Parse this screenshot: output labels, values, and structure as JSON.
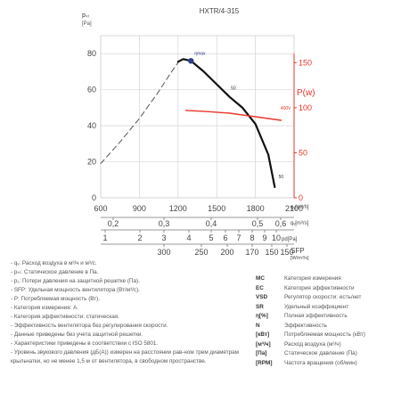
{
  "chart_data": {
    "type": "line",
    "title": "HXTR/4-315",
    "y_left": {
      "label": "pₛₜ [Pa]",
      "ticks": [
        "0",
        "20",
        "40",
        "60",
        "80"
      ],
      "range": [
        0,
        90
      ]
    },
    "y_right": {
      "label": "P(w)",
      "ticks": [
        "0",
        "50",
        "100",
        "150"
      ],
      "range": [
        0,
        180
      ],
      "color": "#e8362a"
    },
    "x_axis": {
      "label": "qᵥ[m³/h]",
      "ticks": [
        "600",
        "900",
        "1200",
        "1500",
        "1800",
        "2100"
      ],
      "range": [
        600,
        2100
      ]
    },
    "scale_m3s": {
      "label": "qᵥ[m³/s]",
      "ticks": [
        "0,2",
        "0,3",
        "0,4",
        "0,5",
        "0,6"
      ]
    },
    "scale_pd": {
      "label": "pd[Pa]",
      "ticks": [
        "1",
        "2",
        "3",
        "4",
        "5",
        "6",
        "7",
        "8",
        "9",
        "10"
      ]
    },
    "scale_sfp": {
      "label": "SFP",
      "unit": "[W/m³/s]",
      "ticks": [
        "300",
        "250",
        "200",
        "170",
        "150",
        "150"
      ]
    },
    "annotations": {
      "max": "ηmax",
      "pressure_curve": "50",
      "power_curve": "400V",
      "end": "50"
    },
    "series": [
      {
        "id": "pressure_dashed",
        "style": "dashed",
        "color": "#555555",
        "axis": "left",
        "x": [
          600,
          750,
          900,
          1050,
          1150,
          1200
        ],
        "y": [
          19,
          31,
          44,
          59,
          70,
          75
        ]
      },
      {
        "id": "pressure",
        "style": "solid",
        "color": "#111111",
        "axis": "left",
        "x": [
          1200,
          1240,
          1300,
          1400,
          1500,
          1600,
          1700,
          1800,
          1900,
          1950
        ],
        "y": [
          75.5,
          77,
          76,
          70,
          63,
          56,
          50,
          41,
          24,
          6
        ]
      },
      {
        "id": "power",
        "style": "solid",
        "color": "#e8362a",
        "axis": "right",
        "x": [
          1260,
          1400,
          1600,
          1800,
          2000
        ],
        "y": [
          97,
          96,
          94,
          90,
          86
        ]
      }
    ],
    "max_point": {
      "x": 1300,
      "y": 76
    }
  },
  "notes": [
    "- qᵥ: Расход воздуха в м³/ч и м³/с.",
    "- pₛₜ: Статическое давление в Па.",
    "- p₁: Потери давления на защитной решетке (Па).",
    "- SFP: Удельная мощность вентилятора (Вт/м³/с).",
    "- P: Потребляемая мощность (Вт).",
    "- Категория измерения: А.",
    "- Категория эффективности: статическая.",
    "- Эффективность вентилятора без регулирования скорости.",
    "- Данные приведены без учета защитной решетки.",
    "- Характеристики приведены в соответствии с ISO 5801.",
    "- Уровень звукового давления (дБ(А)) измерен на расстоянии рав-ном трем диаметрам крыльчатки, но не менее 1,5 м от вентилятора, в свободном пространстве."
  ],
  "legend": [
    {
      "abbr": "MC",
      "desc": "Категория измерения"
    },
    {
      "abbr": "EC",
      "desc": "Категория эффективности"
    },
    {
      "abbr": "VSD",
      "desc": "Регулятор скорости: есть/нет"
    },
    {
      "abbr": "SR",
      "desc": "Удельный коэффициент"
    },
    {
      "abbr": "η[%]",
      "desc": "Полная эффективность"
    },
    {
      "abbr": "N",
      "desc": "Эффективность"
    },
    {
      "abbr": "[кВт]",
      "desc": "Потребляемая мощность (кВт)"
    },
    {
      "abbr": "[м³/ч]",
      "desc": "Расход воздуха (м³/ч)"
    },
    {
      "abbr": "[Па]",
      "desc": "Статическое давление (Па)"
    },
    {
      "abbr": "[RPM]",
      "desc": "Частота вращения (об/мин)"
    }
  ]
}
